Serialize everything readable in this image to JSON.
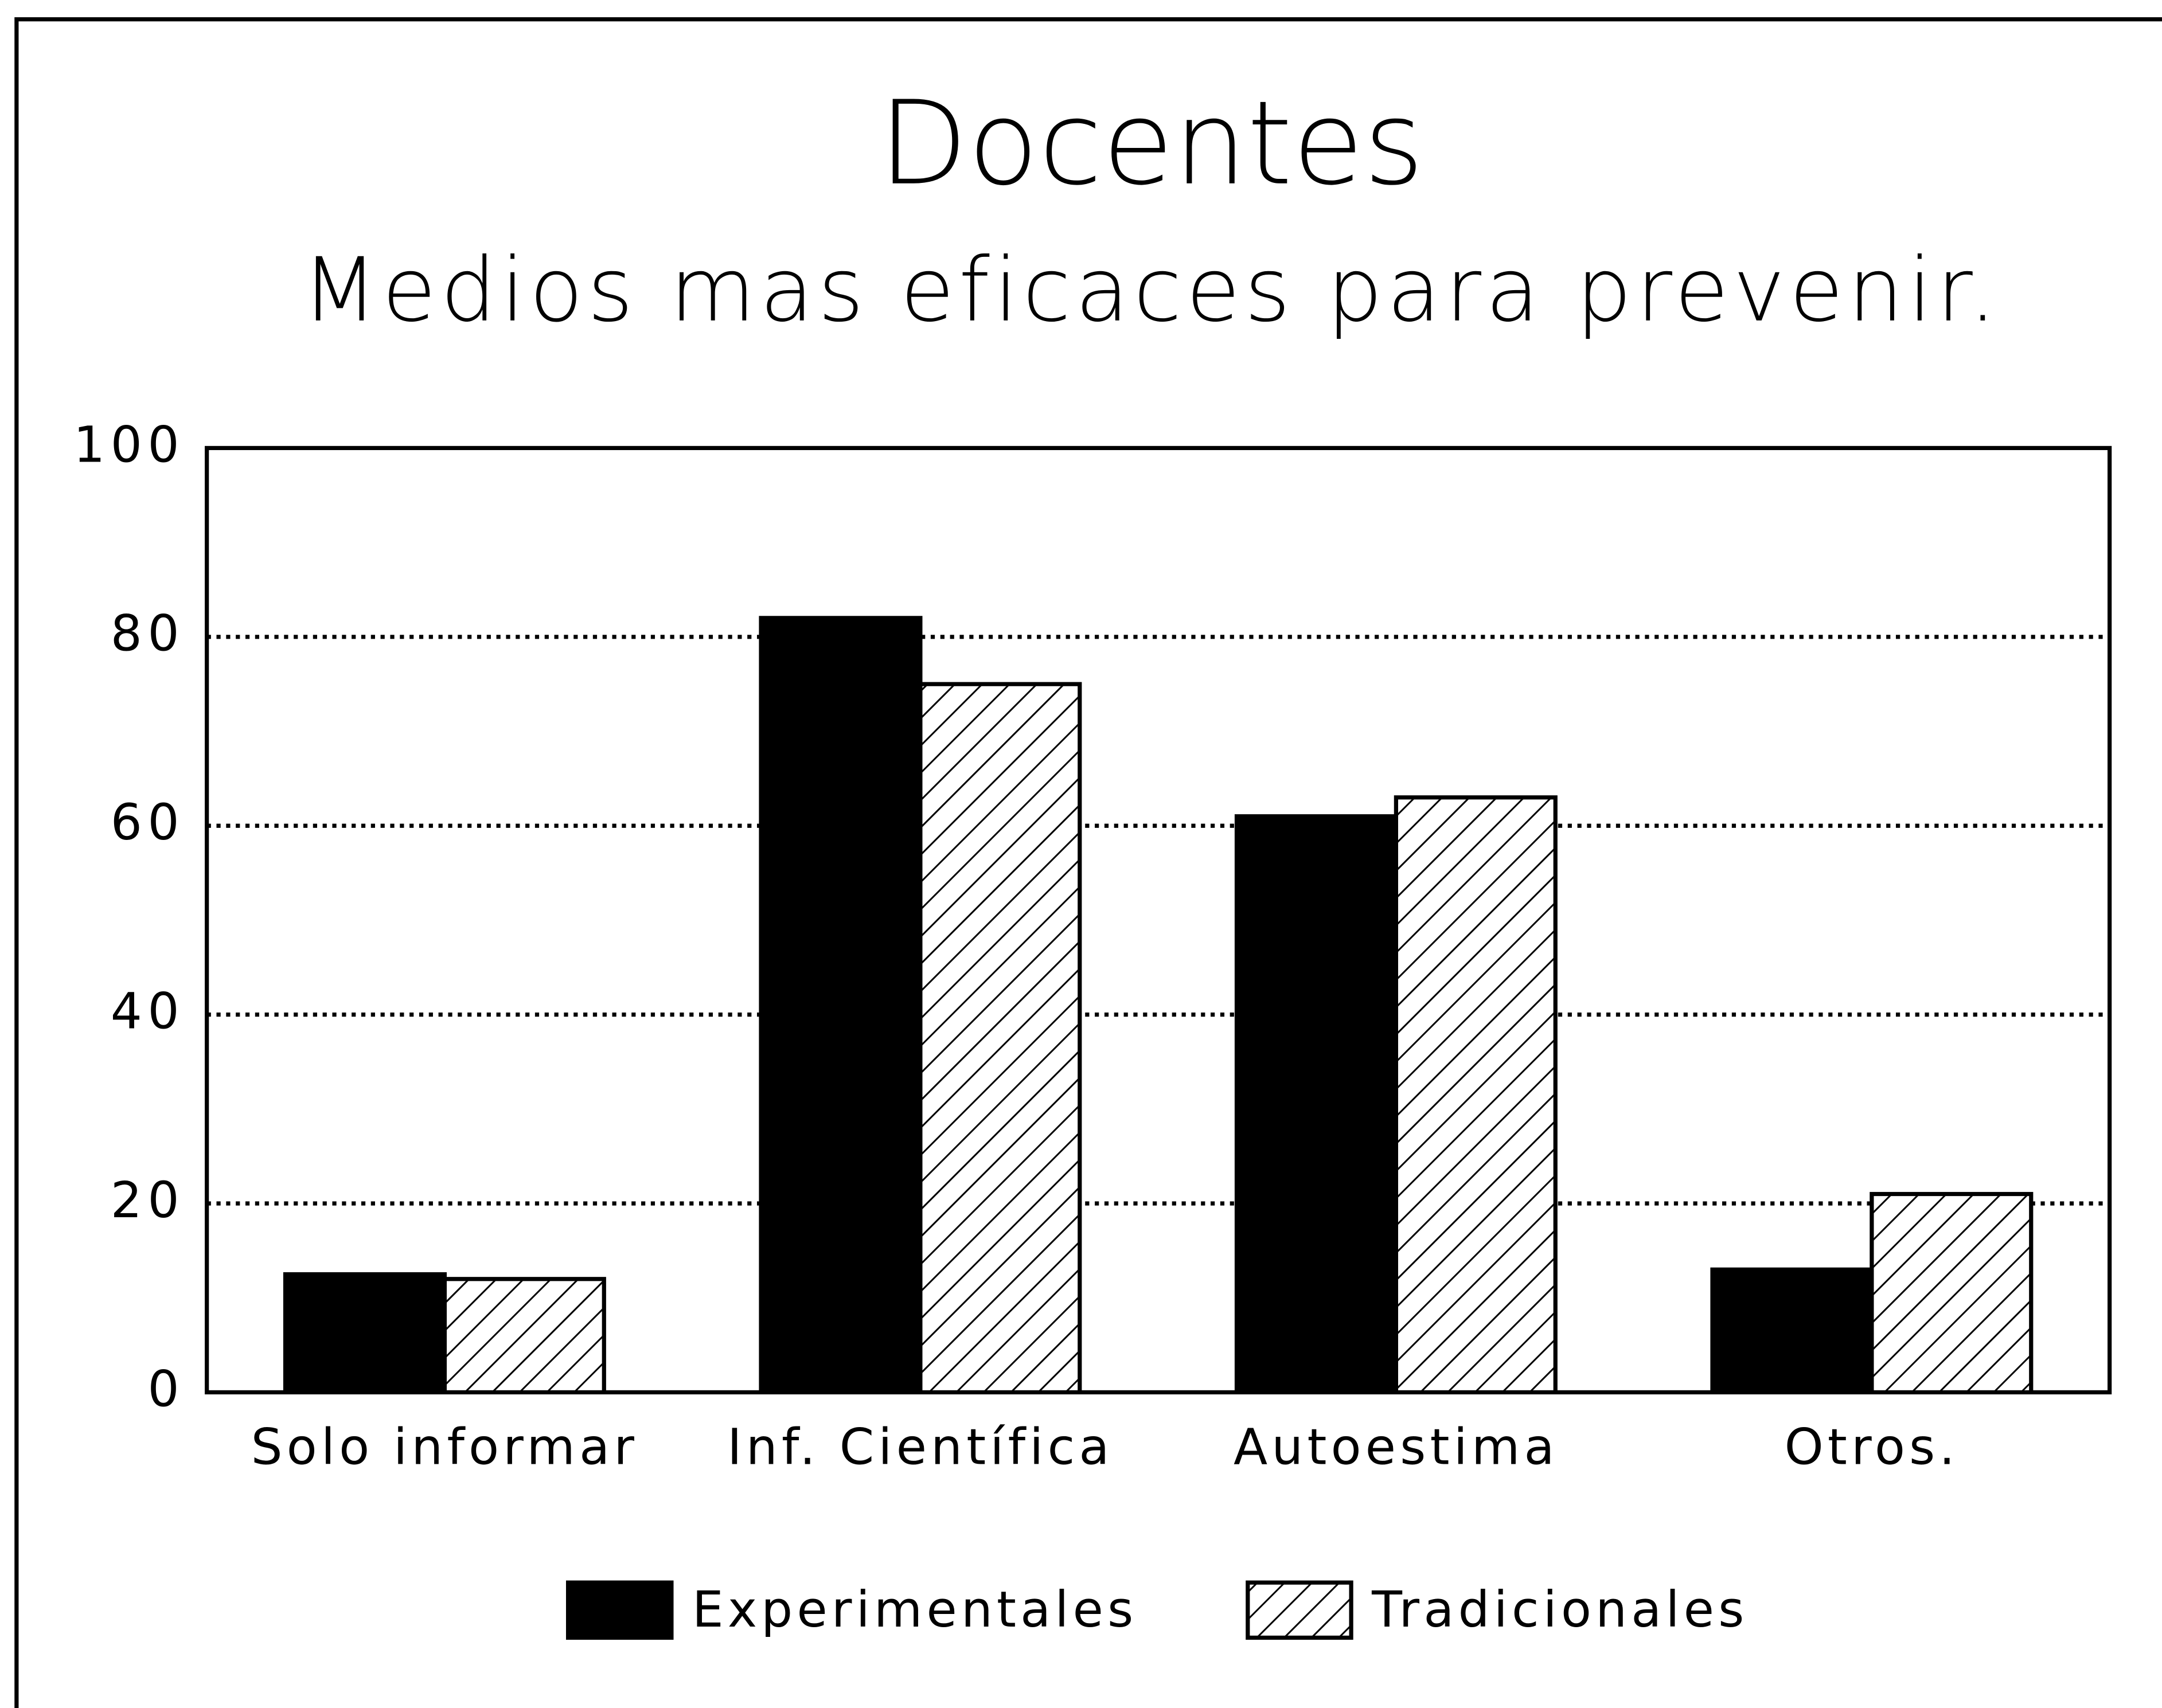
{
  "chart_data": {
    "type": "bar",
    "title": "Docentes",
    "subtitle": "Medios mas eficaces para prevenir.",
    "categories": [
      "Solo informar",
      "Inf. Científica",
      "Autoestima",
      "Otros."
    ],
    "series": [
      {
        "name": "Experimentales",
        "color": "#000000",
        "pattern": "solid",
        "values": [
          12.5,
          82,
          61,
          13
        ]
      },
      {
        "name": "Tradicionales",
        "color": "#000000",
        "pattern": "hatch",
        "values": [
          12,
          75,
          63,
          21
        ]
      }
    ],
    "ylim": [
      0,
      100
    ],
    "yticks": [
      0,
      20,
      40,
      60,
      80,
      100
    ],
    "grid": true,
    "legend": "bottom"
  }
}
